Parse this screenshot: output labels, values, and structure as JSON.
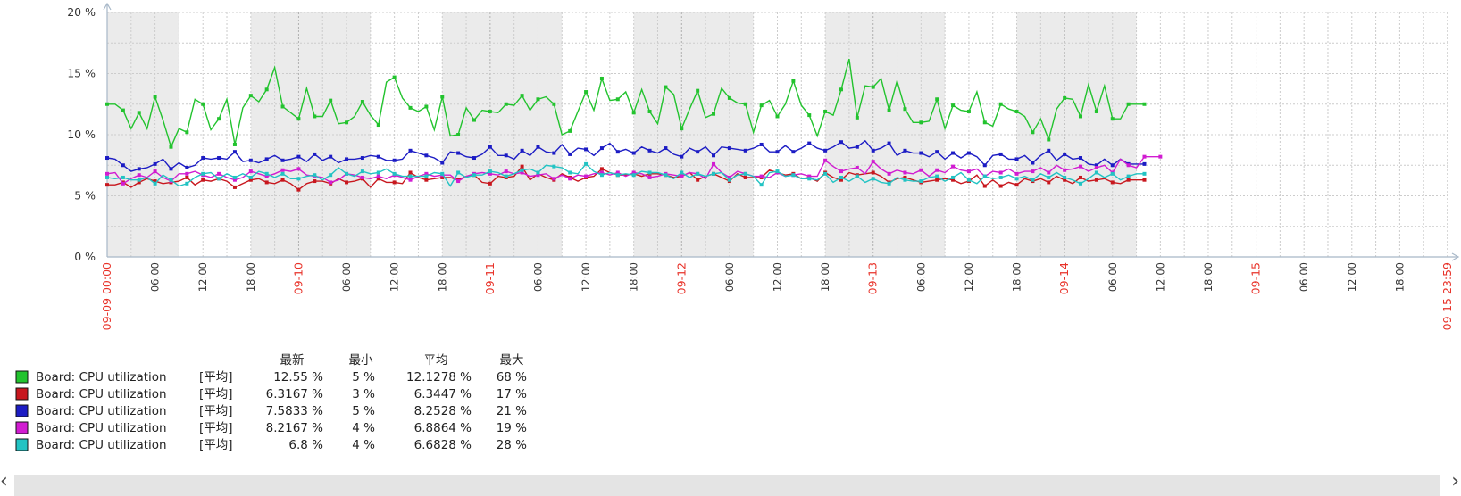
{
  "chart_data": {
    "type": "line",
    "title": "",
    "ylabel": "",
    "xlabel": "",
    "ylim": [
      0,
      20
    ],
    "y_ticks": [
      "0 %",
      "5 %",
      "10 %",
      "15 %",
      "20 %"
    ],
    "y_tick_values": [
      0,
      5,
      10,
      15,
      20
    ],
    "x_range": [
      "2023-09-09 00:00",
      "2023-09-15 23:59"
    ],
    "x_axis_tick_labels": [
      "09-09 00:00",
      "06:00",
      "12:00",
      "18:00",
      "09-10",
      "06:00",
      "12:00",
      "18:00",
      "09-11",
      "06:00",
      "12:00",
      "18:00",
      "09-12",
      "06:00",
      "12:00",
      "18:00",
      "09-13",
      "06:00",
      "12:00",
      "18:00",
      "09-14",
      "06:00",
      "12:00",
      "18:00",
      "09-15",
      "06:00",
      "12:00",
      "18:00",
      "09-15 23:59"
    ],
    "x_axis_tick_hours": [
      0,
      6,
      12,
      18,
      24,
      30,
      36,
      42,
      48,
      54,
      60,
      66,
      72,
      78,
      84,
      90,
      96,
      102,
      108,
      114,
      120,
      126,
      132,
      138,
      144,
      150,
      156,
      162,
      167.98
    ],
    "x_axis_day_ticks": [
      "09-09 00:00",
      "09-10",
      "09-11",
      "09-12",
      "09-13",
      "09-14",
      "09-15",
      "09-15 23:59"
    ],
    "grid": true,
    "data_end": "2023-09-14 09:00",
    "series_x_start": "2023-09-09 00:00",
    "series_x_step": "1 hour",
    "work_hours_shading": [
      {
        "start": "09-09 00:00",
        "end": "09-09 09:00"
      },
      {
        "start": "09-09 18:00",
        "end": "09-10 09:00"
      },
      {
        "start": "09-10 18:00",
        "end": "09-11 09:00"
      },
      {
        "start": "09-11 18:00",
        "end": "09-12 09:00"
      },
      {
        "start": "09-12 18:00",
        "end": "09-13 09:00"
      },
      {
        "start": "09-13 18:00",
        "end": "09-14 09:00"
      }
    ],
    "legend": {
      "position": "bottom-left",
      "headers": [
        "最新",
        "最小",
        "平均",
        "最大"
      ],
      "rows": [
        {
          "name": "Board: CPU utilization",
          "func": "[平均]",
          "last": "12.55 %",
          "min": "5 %",
          "avg": "12.1278 %",
          "max": "68 %",
          "color": "#22c32e"
        },
        {
          "name": "Board: CPU utilization",
          "func": "[平均]",
          "last": "6.3167 %",
          "min": "3 %",
          "avg": "6.3447 %",
          "max": "17 %",
          "color": "#c8171e"
        },
        {
          "name": "Board: CPU utilization",
          "func": "[平均]",
          "last": "7.5833 %",
          "min": "5 %",
          "avg": "8.2528 %",
          "max": "21 %",
          "color": "#1c1cc4"
        },
        {
          "name": "Board: CPU utilization",
          "func": "[平均]",
          "last": "8.2167 %",
          "min": "4 %",
          "avg": "6.8864 %",
          "max": "19 %",
          "color": "#d11cd1"
        },
        {
          "name": "Board: CPU utilization",
          "func": "[平均]",
          "last": "6.8 %",
          "min": "4 %",
          "avg": "6.6828 %",
          "max": "28 %",
          "color": "#22c3c3"
        }
      ]
    },
    "series": [
      {
        "name": "Board: CPU utilization",
        "color": "#22c32e",
        "values": [
          12.5,
          12.5,
          12.0,
          10.5,
          11.8,
          10.5,
          13.1,
          11.2,
          9.0,
          10.5,
          10.2,
          12.9,
          12.5,
          10.4,
          11.3,
          12.9,
          9.2,
          12.2,
          13.2,
          12.7,
          13.7,
          15.5,
          12.3,
          11.8,
          11.3,
          13.8,
          11.5,
          11.5,
          12.8,
          10.9,
          11.0,
          11.5,
          12.7,
          11.6,
          10.8,
          14.3,
          14.7,
          13.0,
          12.2,
          11.9,
          12.3,
          10.4,
          13.1,
          9.9,
          10.0,
          12.2,
          11.2,
          12.0,
          11.9,
          11.8,
          12.5,
          12.4,
          13.2,
          12.0,
          12.9,
          13.1,
          12.5,
          10.0,
          10.3,
          11.9,
          13.5,
          12.0,
          14.6,
          12.8,
          12.9,
          13.5,
          11.8,
          13.7,
          11.9,
          10.9,
          13.9,
          13.3,
          10.5,
          12.1,
          13.6,
          11.4,
          11.7,
          13.8,
          13.0,
          12.6,
          12.5,
          10.2,
          12.4,
          12.8,
          11.5,
          12.5,
          14.4,
          12.4,
          11.6,
          9.9,
          11.9,
          11.6,
          13.7,
          16.2,
          11.4,
          14.0,
          13.9,
          14.6,
          12.0,
          14.4,
          12.1,
          11.0,
          11.0,
          11.1,
          12.9,
          10.5,
          12.4,
          12.0,
          11.9,
          13.5,
          11.0,
          10.7,
          12.5,
          12.1,
          11.9,
          11.5,
          10.2,
          11.3,
          9.6,
          12.1,
          13.0,
          12.9,
          11.5,
          14.1,
          11.9,
          14.0,
          11.3,
          11.3,
          12.5,
          12.5,
          12.5
        ]
      },
      {
        "name": "Board: CPU utilization",
        "color": "#c8171e",
        "values": [
          5.9,
          5.9,
          6.1,
          5.7,
          6.1,
          6.4,
          6.2,
          6.0,
          6.1,
          6.2,
          6.5,
          5.9,
          6.3,
          6.2,
          6.4,
          6.2,
          5.7,
          6.0,
          6.3,
          6.4,
          6.1,
          6.0,
          6.3,
          6.0,
          5.5,
          6.0,
          6.2,
          6.2,
          6.0,
          6.4,
          6.1,
          6.2,
          6.4,
          5.7,
          6.4,
          6.1,
          6.1,
          6.0,
          6.9,
          6.5,
          6.3,
          6.4,
          6.5,
          6.5,
          6.3,
          6.6,
          6.7,
          6.1,
          6.0,
          6.6,
          6.5,
          6.6,
          7.4,
          6.3,
          6.8,
          6.5,
          6.3,
          6.8,
          6.5,
          6.2,
          6.5,
          6.6,
          7.2,
          6.9,
          6.7,
          6.7,
          6.8,
          6.6,
          6.8,
          6.8,
          6.7,
          6.5,
          6.6,
          6.9,
          6.3,
          6.6,
          6.8,
          6.5,
          6.2,
          6.8,
          6.5,
          6.5,
          6.5,
          7.1,
          6.9,
          6.7,
          6.8,
          6.4,
          6.5,
          6.2,
          6.9,
          6.5,
          6.3,
          6.9,
          6.7,
          6.8,
          6.9,
          6.6,
          6.1,
          6.4,
          6.5,
          6.3,
          6.1,
          6.2,
          6.3,
          6.4,
          6.3,
          6.0,
          6.2,
          6.7,
          5.8,
          6.3,
          5.8,
          6.1,
          5.9,
          6.4,
          6.2,
          6.4,
          6.1,
          6.6,
          6.3,
          6.0,
          6.5,
          6.2,
          6.3,
          6.4,
          6.1,
          6.0,
          6.3,
          6.3,
          6.3
        ]
      },
      {
        "name": "Board: CPU utilization",
        "color": "#1c1cc4",
        "values": [
          8.1,
          8.0,
          7.5,
          7.0,
          7.2,
          7.3,
          7.6,
          8.0,
          7.2,
          7.7,
          7.3,
          7.5,
          8.1,
          8.0,
          8.1,
          8.0,
          8.6,
          7.8,
          7.9,
          7.7,
          8.0,
          8.3,
          7.9,
          8.0,
          8.2,
          7.8,
          8.4,
          7.9,
          8.2,
          7.7,
          8.0,
          8.0,
          8.1,
          8.3,
          8.2,
          7.9,
          7.9,
          8.0,
          8.7,
          8.5,
          8.3,
          8.1,
          7.7,
          8.6,
          8.5,
          8.2,
          8.1,
          8.4,
          9.0,
          8.3,
          8.3,
          8.0,
          8.7,
          8.3,
          9.0,
          8.6,
          8.5,
          9.2,
          8.4,
          8.9,
          8.8,
          8.3,
          8.9,
          9.3,
          8.6,
          8.8,
          8.5,
          9.0,
          8.7,
          8.5,
          8.9,
          8.4,
          8.2,
          8.9,
          8.6,
          9.0,
          8.3,
          9.0,
          8.9,
          8.8,
          8.7,
          8.9,
          9.2,
          8.6,
          8.6,
          9.1,
          8.6,
          8.9,
          9.3,
          8.9,
          8.7,
          9.0,
          9.4,
          8.9,
          9.0,
          9.5,
          8.7,
          8.9,
          9.3,
          8.3,
          8.7,
          8.5,
          8.5,
          8.2,
          8.6,
          8.0,
          8.5,
          8.1,
          8.5,
          8.2,
          7.5,
          8.3,
          8.4,
          8.0,
          8.0,
          8.3,
          7.7,
          8.3,
          8.7,
          7.9,
          8.4,
          8.0,
          8.1,
          7.6,
          7.5,
          8.0,
          7.5,
          8.0,
          7.6,
          7.6,
          7.6
        ]
      },
      {
        "name": "Board: CPU utilization",
        "color": "#d11cd1",
        "values": [
          6.8,
          6.9,
          6.0,
          6.4,
          6.7,
          6.5,
          7.0,
          6.5,
          6.2,
          6.8,
          6.8,
          7.0,
          6.7,
          6.5,
          6.8,
          6.5,
          6.3,
          6.5,
          7.0,
          6.8,
          6.6,
          6.8,
          7.1,
          7.0,
          7.2,
          6.7,
          6.6,
          6.5,
          6.1,
          6.3,
          6.8,
          6.7,
          6.5,
          6.4,
          6.6,
          6.4,
          6.7,
          6.5,
          6.3,
          6.6,
          6.8,
          6.6,
          6.7,
          6.7,
          6.2,
          6.6,
          6.8,
          6.9,
          6.8,
          6.7,
          7.0,
          6.8,
          6.9,
          6.6,
          6.7,
          6.8,
          6.4,
          6.7,
          6.4,
          6.7,
          6.6,
          6.8,
          6.9,
          6.7,
          6.9,
          6.6,
          6.9,
          6.8,
          6.5,
          6.6,
          6.8,
          6.7,
          6.6,
          6.9,
          6.8,
          6.4,
          7.6,
          6.9,
          6.5,
          7.0,
          6.8,
          6.6,
          6.6,
          6.5,
          6.9,
          6.6,
          6.7,
          6.8,
          6.6,
          6.6,
          7.9,
          7.4,
          7.0,
          7.2,
          7.3,
          6.8,
          7.8,
          7.2,
          6.8,
          7.1,
          6.9,
          6.8,
          7.1,
          6.6,
          7.1,
          6.9,
          7.4,
          7.1,
          7.0,
          7.2,
          6.6,
          7.0,
          6.9,
          7.2,
          6.8,
          7.0,
          7.0,
          7.3,
          6.9,
          7.5,
          7.1,
          7.2,
          7.4,
          7.0,
          7.3,
          7.5,
          6.9,
          8.0,
          7.5,
          7.3,
          8.2,
          8.2,
          8.2
        ]
      },
      {
        "name": "Board: CPU utilization",
        "color": "#22c3c3",
        "values": [
          6.5,
          6.4,
          6.5,
          6.3,
          6.3,
          6.5,
          6.0,
          6.7,
          6.3,
          5.8,
          6.0,
          6.5,
          6.8,
          6.9,
          6.4,
          6.8,
          6.5,
          6.8,
          6.5,
          7.0,
          6.8,
          6.5,
          6.8,
          6.4,
          6.4,
          6.6,
          6.7,
          6.3,
          6.7,
          7.3,
          6.8,
          6.6,
          7.0,
          6.8,
          6.9,
          7.2,
          6.8,
          6.6,
          6.6,
          6.6,
          6.6,
          6.9,
          6.8,
          5.8,
          6.9,
          6.5,
          6.7,
          6.7,
          7.0,
          6.9,
          6.6,
          6.8,
          7.1,
          7.2,
          6.9,
          7.5,
          7.4,
          7.3,
          6.9,
          6.8,
          7.6,
          7.0,
          6.7,
          6.9,
          6.7,
          6.8,
          6.7,
          7.0,
          6.9,
          6.9,
          6.7,
          6.4,
          6.9,
          6.5,
          6.8,
          6.6,
          6.8,
          6.9,
          6.3,
          6.7,
          6.8,
          6.6,
          5.9,
          6.9,
          7.0,
          6.6,
          6.7,
          6.4,
          6.4,
          6.3,
          6.8,
          6.1,
          6.5,
          6.2,
          6.6,
          6.1,
          6.4,
          6.1,
          6.0,
          6.5,
          6.3,
          6.2,
          6.2,
          6.5,
          6.6,
          6.2,
          6.5,
          6.9,
          6.3,
          6.0,
          6.6,
          6.4,
          6.5,
          6.7,
          6.4,
          6.6,
          6.3,
          6.8,
          6.5,
          6.9,
          6.5,
          6.3,
          6.0,
          6.4,
          6.9,
          6.5,
          6.8,
          6.3,
          6.6,
          6.8,
          6.8
        ]
      }
    ]
  }
}
